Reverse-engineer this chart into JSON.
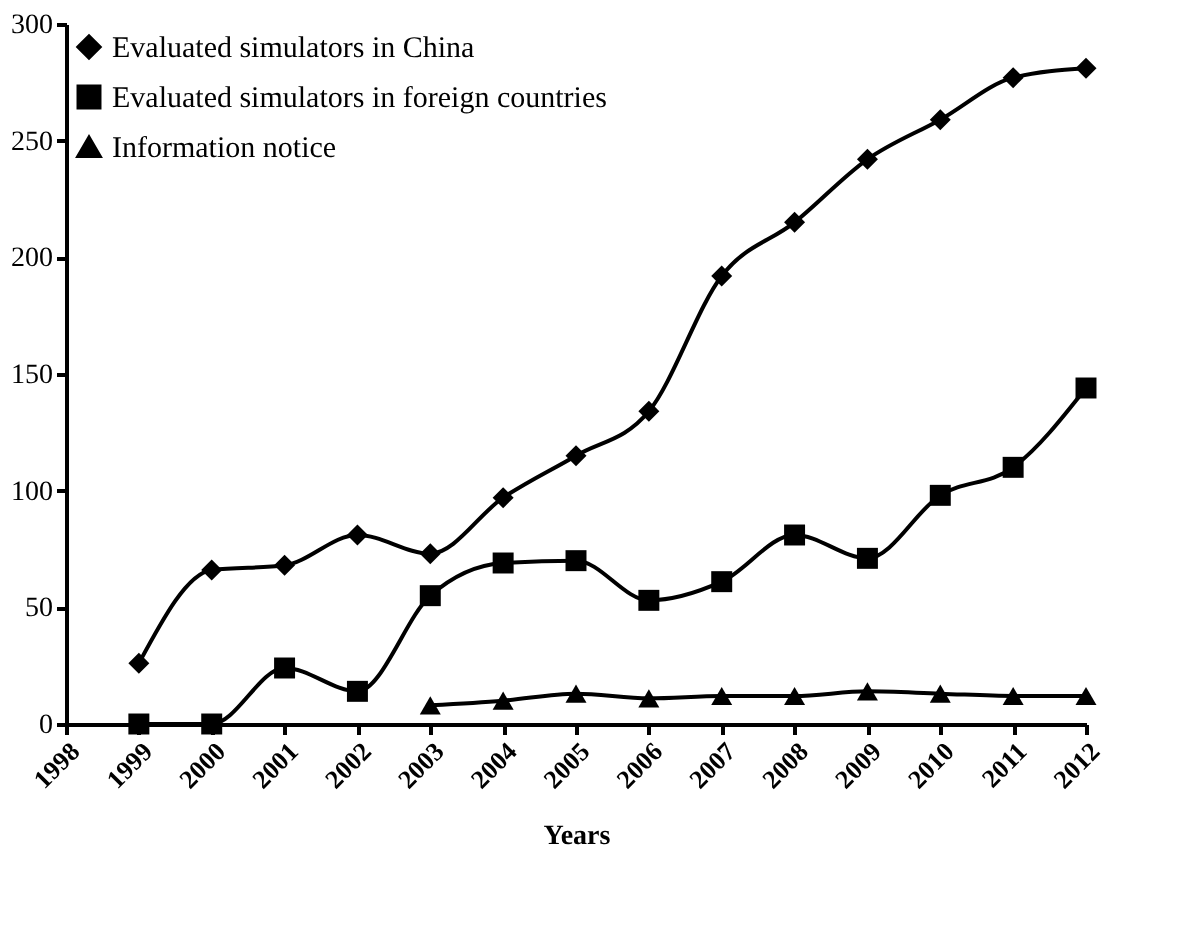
{
  "chart_data": {
    "type": "line",
    "xlabel": "Years",
    "xlim": [
      1998,
      2012
    ],
    "xticks": [
      1998,
      1999,
      2000,
      2001,
      2002,
      2003,
      2004,
      2005,
      2006,
      2007,
      2008,
      2009,
      2010,
      2011,
      2012
    ],
    "ylim": [
      0,
      300
    ],
    "yticks": [
      0,
      50,
      100,
      150,
      200,
      250,
      300
    ],
    "grid": false,
    "legend": "top left",
    "line_style": "solid",
    "series": [
      {
        "name": "Evaluated simulators in China",
        "color": "#000000",
        "marker": "diamond",
        "x": [
          1999,
          2000,
          2001,
          2002,
          2003,
          2004,
          2005,
          2006,
          2007,
          2008,
          2009,
          2010,
          2011,
          2012
        ],
        "values": [
          26,
          66,
          68,
          81,
          73,
          97,
          115,
          134,
          192,
          215,
          242,
          259,
          277,
          281
        ]
      },
      {
        "name": "Evaluated simulators in foreign countries",
        "color": "#000000",
        "marker": "square",
        "x": [
          1999,
          2000,
          2001,
          2002,
          2003,
          2004,
          2005,
          2006,
          2007,
          2008,
          2009,
          2010,
          2011,
          2012
        ],
        "values": [
          0,
          0,
          24,
          14,
          55,
          69,
          70,
          53,
          61,
          81,
          71,
          98,
          110,
          144
        ]
      },
      {
        "name": "Information notice",
        "color": "#000000",
        "marker": "triangle",
        "x": [
          2003,
          2004,
          2005,
          2006,
          2007,
          2008,
          2009,
          2010,
          2011,
          2012
        ],
        "values": [
          8,
          10,
          13,
          11,
          12,
          12,
          14,
          13,
          12,
          12
        ]
      }
    ]
  }
}
